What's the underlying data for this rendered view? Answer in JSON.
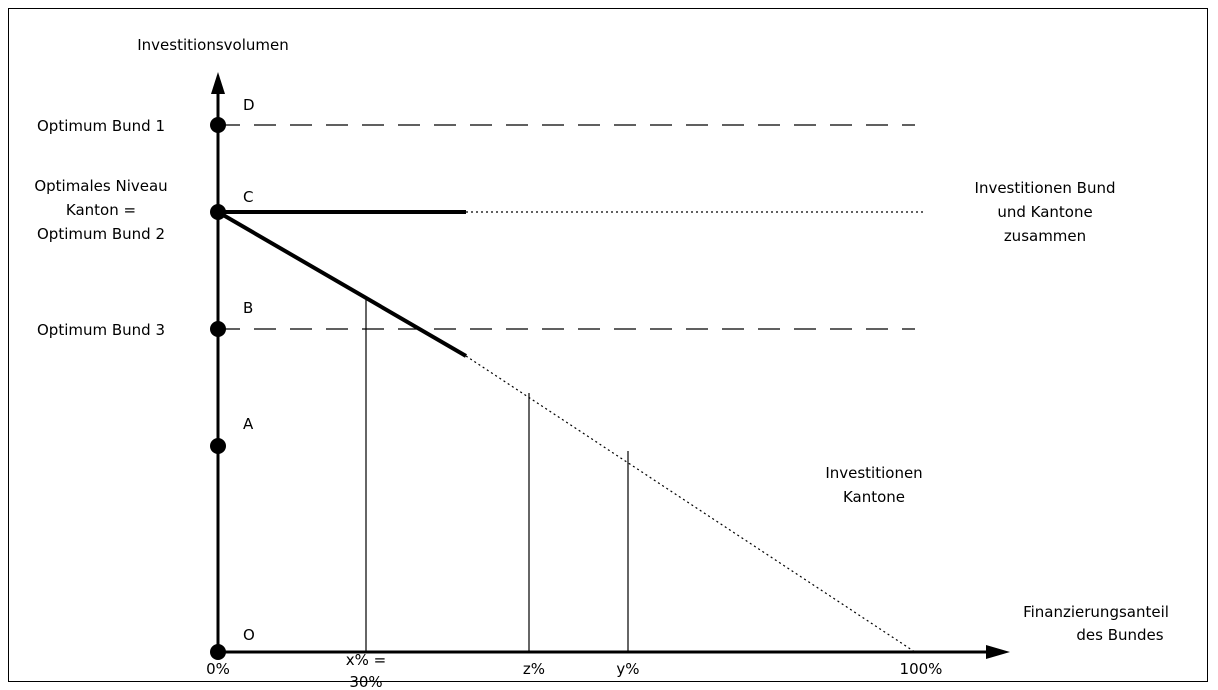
{
  "axes": {
    "y_label": "Investitionsvolumen",
    "x_label_line1": "Finanzierungsanteil",
    "x_label_line2": "des Bundes"
  },
  "levels": {
    "optimum_bund_1": "Optimum Bund 1",
    "optimales_niveau_line1": "Optimales Niveau",
    "optimales_niveau_line2": "Kanton =",
    "optimales_niveau_line3": "Optimum Bund 2",
    "optimum_bund_3": "Optimum Bund 3"
  },
  "points": {
    "D": "D",
    "C": "C",
    "B": "B",
    "A": "A",
    "O": "O"
  },
  "curves": {
    "total_line1": "Investitionen Bund",
    "total_line2": "und Kantone",
    "total_line3": "zusammen",
    "kantone_line1": "Investitionen",
    "kantone_line2": "Kantone"
  },
  "x_ticks": {
    "zero": "0%",
    "x_line1": "x% =",
    "x_line2": "30%",
    "z": "z%",
    "y": "y%",
    "hundred": "100%"
  }
}
